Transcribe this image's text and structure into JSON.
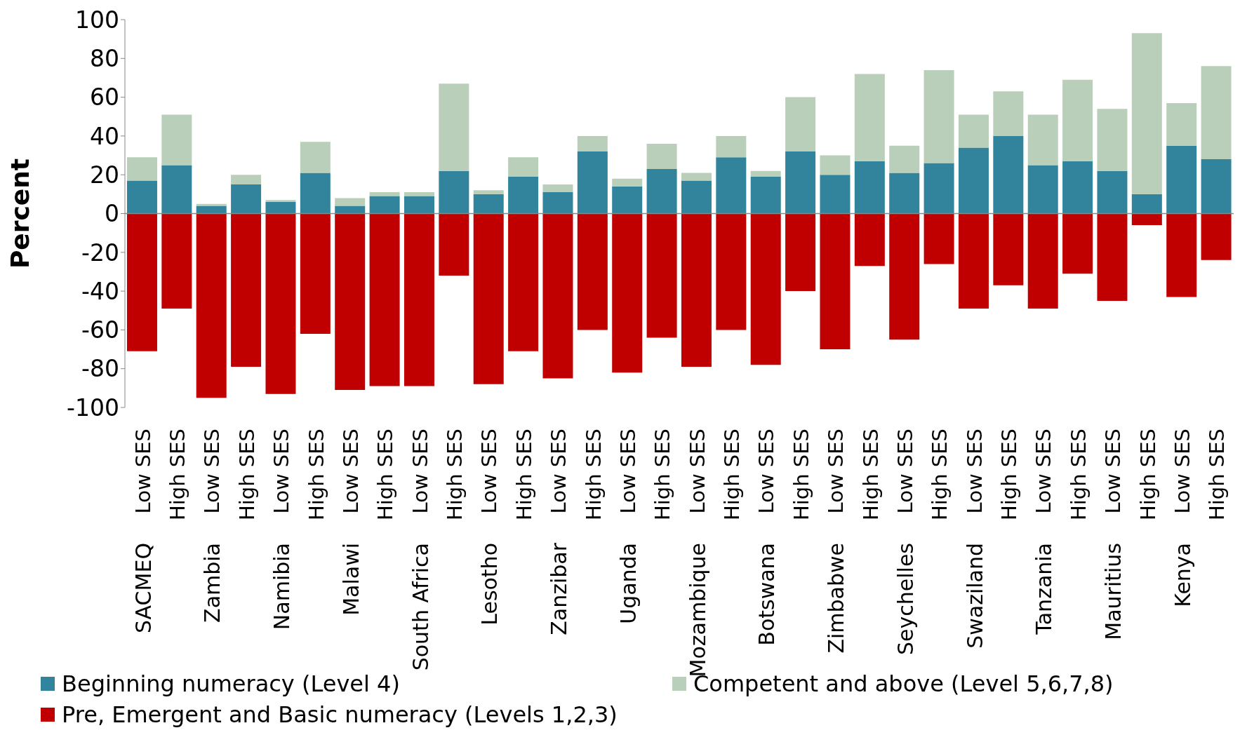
{
  "chart_data": {
    "type": "bar",
    "stacked": true,
    "ylabel": "Percent",
    "categories": [
      "Low SES",
      "High SES",
      "Low SES",
      "High SES",
      "Low SES",
      "High SES",
      "Low SES",
      "High SES",
      "Low SES",
      "High SES",
      "Low SES",
      "High SES",
      "Low SES",
      "High SES",
      "Low SES",
      "High SES",
      "Low SES",
      "High SES",
      "Low SES",
      "High SES",
      "Low SES",
      "High SES",
      "Low SES",
      "High SES",
      "Low SES",
      "High SES",
      "Low SES",
      "High SES",
      "Low SES",
      "High SES",
      "Low SES",
      "High SES"
    ],
    "annotations": [
      "SACMEQ",
      "Zambia",
      "Namibia",
      "Malawi",
      "South Africa",
      "Lesotho",
      "Zanzibar",
      "Uganda",
      "Mozambique",
      "Botswana",
      "Zimbabwe",
      "Seychelles",
      "Swaziland",
      "Tanzania",
      "Mauritius",
      "Kenya"
    ],
    "series": [
      {
        "name": "Beginning numeracy (Level 4)",
        "color": "#31849b",
        "values": [
          17,
          25,
          4,
          15,
          6,
          21,
          4,
          9,
          9,
          22,
          10,
          19,
          11,
          32,
          14,
          23,
          17,
          29,
          19,
          32,
          20,
          27,
          21,
          26,
          34,
          40,
          25,
          27,
          22,
          10,
          35,
          28
        ]
      },
      {
        "name": "Competent and above (Level 5,6,7,8)",
        "color": "#b9cfb9",
        "values": [
          12,
          26,
          1,
          5,
          1,
          16,
          4,
          2,
          2,
          45,
          2,
          10,
          4,
          8,
          4,
          13,
          4,
          11,
          3,
          28,
          10,
          45,
          14,
          48,
          17,
          23,
          26,
          42,
          32,
          83,
          22,
          48
        ]
      },
      {
        "name": "Pre, Emergent and Basic numeracy (Levels 1,2,3)",
        "color": "#c00000",
        "values": [
          -71,
          -49,
          -95,
          -79,
          -93,
          -62,
          -91,
          -89,
          -89,
          -32,
          -88,
          -71,
          -85,
          -60,
          -82,
          -64,
          -79,
          -60,
          -78,
          -40,
          -70,
          -27,
          -65,
          -26,
          -49,
          -37,
          -49,
          -31,
          -45,
          -6,
          -43,
          -24
        ]
      }
    ],
    "ylim": [
      -100,
      100
    ],
    "yticks": [
      -100,
      -80,
      -60,
      -40,
      -20,
      0,
      20,
      40,
      60,
      80,
      100
    ],
    "legend": "bottom"
  }
}
